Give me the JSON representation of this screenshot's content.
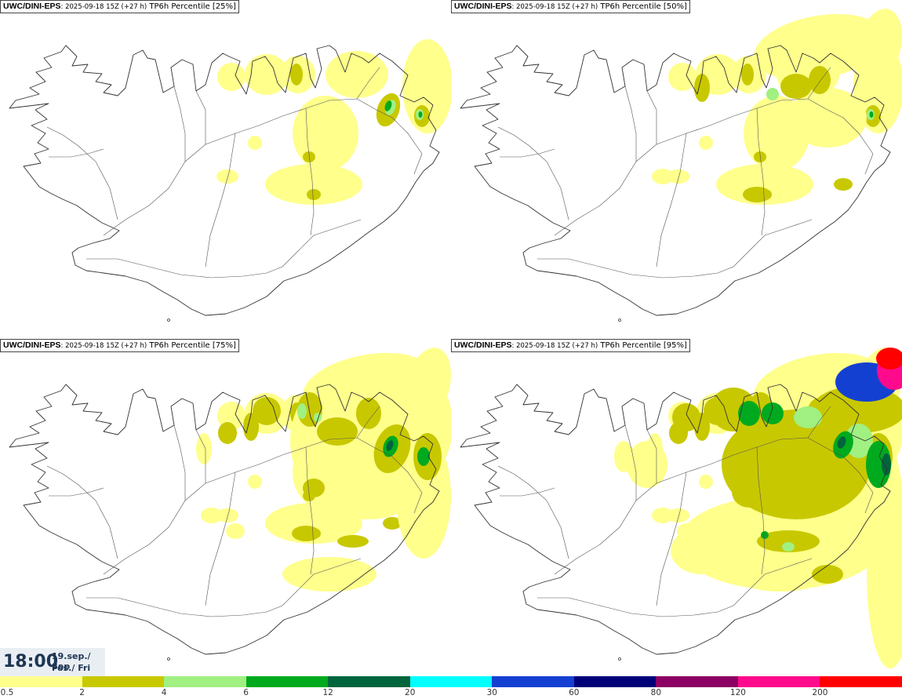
{
  "panels": [
    {
      "model": "UWC/DINI-EPS",
      "run": ": 2025-09-18 15Z (+27 h)",
      "field": "TP6h Percentile [25%]",
      "percentile": 25
    },
    {
      "model": "UWC/DINI-EPS",
      "run": ": 2025-09-18 15Z (+27 h)",
      "field": "TP6h Percentile [50%]",
      "percentile": 50
    },
    {
      "model": "UWC/DINI-EPS",
      "run": ": 2025-09-18 15Z (+27 h)",
      "field": "TP6h Percentile [75%]",
      "percentile": 75
    },
    {
      "model": "UWC/DINI-EPS",
      "run": ": 2025-09-18 15Z (+27 h)",
      "field": "TP6h Percentile [95%]",
      "percentile": 95
    }
  ],
  "valid_time": {
    "time": "18:00",
    "date": "19.sep./ Sep",
    "day": "Fös./ Fri"
  },
  "legend": {
    "colors": [
      "#ffff8c",
      "#c8c800",
      "#a0f082",
      "#00aa1e",
      "#00643c",
      "#00ffff",
      "#1440d2",
      "#000078",
      "#8c0064",
      "#ff0a8c",
      "#ff0000"
    ],
    "ticks": [
      "0.5",
      "2",
      "4",
      "6",
      "12",
      "20",
      "30",
      "60",
      "80",
      "120",
      "200"
    ]
  }
}
